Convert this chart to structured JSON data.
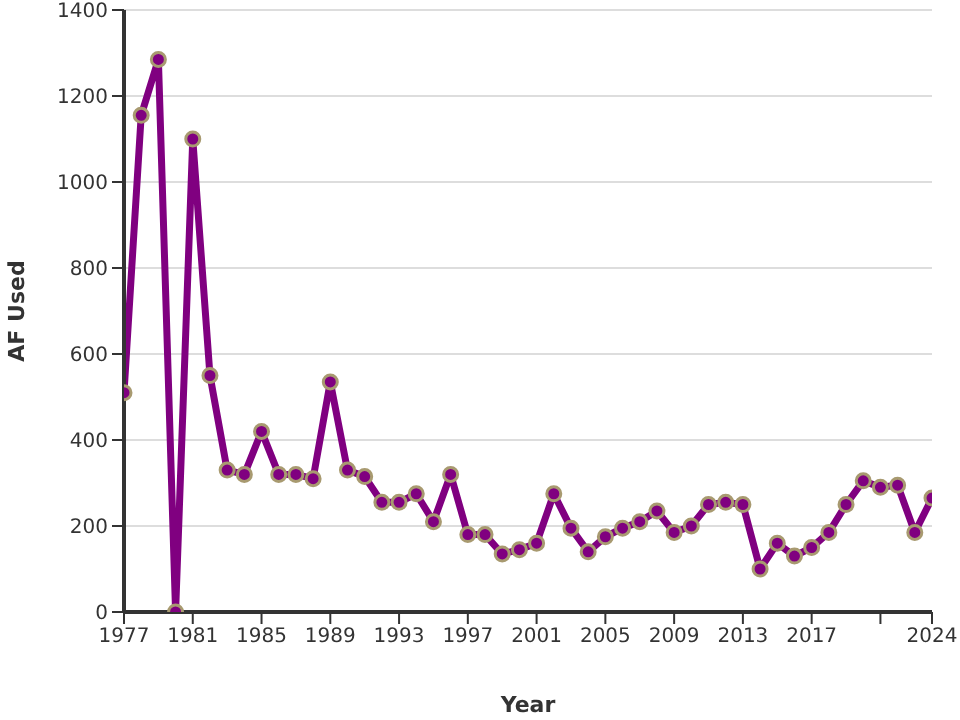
{
  "chart_data": {
    "type": "line",
    "xlabel": "Year",
    "ylabel": "AF Used",
    "x": [
      1977,
      1978,
      1979,
      1980,
      1981,
      1982,
      1983,
      1984,
      1985,
      1986,
      1987,
      1988,
      1989,
      1990,
      1991,
      1992,
      1993,
      1994,
      1995,
      1996,
      1997,
      1998,
      1999,
      2000,
      2001,
      2002,
      2003,
      2004,
      2005,
      2006,
      2007,
      2008,
      2009,
      2010,
      2011,
      2012,
      2013,
      2014,
      2015,
      2016,
      2017,
      2018,
      2019,
      2020,
      2021,
      2022,
      2023,
      2024
    ],
    "series": [
      {
        "color": "#800080",
        "values": [
          510,
          1155,
          1285,
          0,
          1100,
          550,
          330,
          320,
          420,
          320,
          320,
          310,
          535,
          330,
          315,
          255,
          255,
          275,
          210,
          320,
          180,
          180,
          135,
          145,
          160,
          275,
          195,
          140,
          175,
          195,
          210,
          235,
          185,
          200,
          250,
          255,
          250,
          100,
          160,
          130,
          150,
          185,
          250,
          305,
          290,
          295,
          185,
          265
        ]
      }
    ],
    "xlim": [
      1977,
      2024
    ],
    "xticks": [
      1977,
      1981,
      1985,
      1989,
      1993,
      1997,
      2001,
      2005,
      2009,
      2013,
      2017,
      {
        "value": 2021,
        "label": null
      },
      2024
    ],
    "ylim": [
      0,
      1400
    ],
    "yticks": [
      0,
      200,
      400,
      600,
      800,
      1000,
      1200,
      1400
    ],
    "grid": "y",
    "marker": "circle",
    "line_style": "solid",
    "legend": false
  }
}
